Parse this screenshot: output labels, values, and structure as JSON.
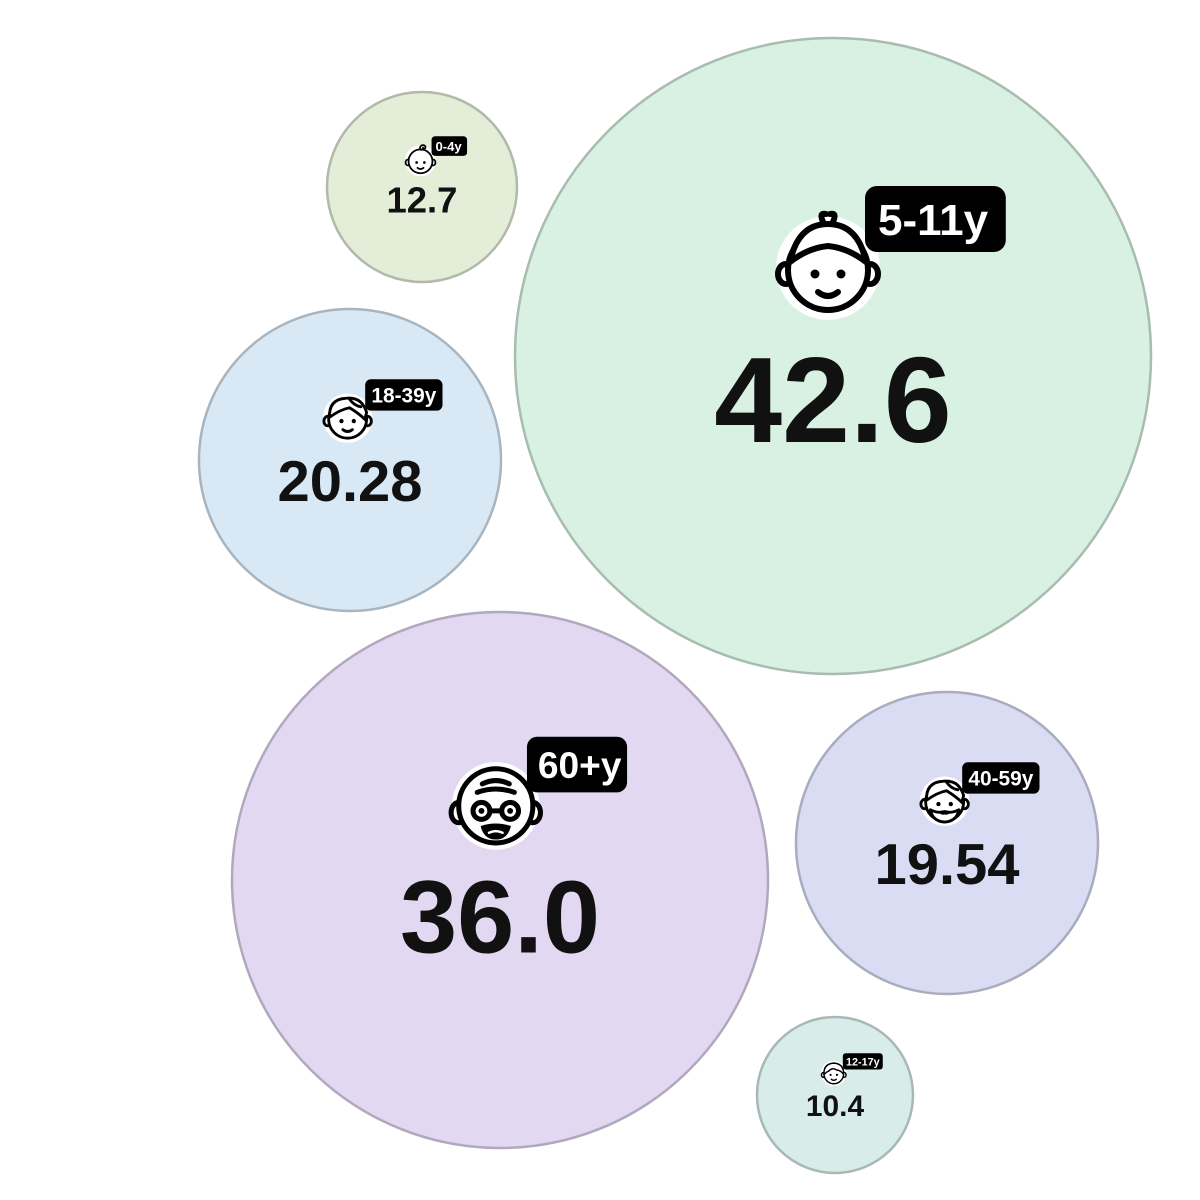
{
  "chart_data": {
    "type": "bubble",
    "title": "",
    "legend": "none",
    "grid": false,
    "categories": [
      "0-4y",
      "5-11y",
      "12-17y",
      "18-39y",
      "40-59y",
      "60+y"
    ],
    "series": [
      {
        "points": [
          {
            "label": "0-4y",
            "value_text": "12.7",
            "value": 12.7,
            "color": "#e3edd8",
            "icon": "baby-face-icon"
          },
          {
            "label": "5-11y",
            "value_text": "42.6",
            "value": 42.6,
            "color": "#d8f1e2",
            "icon": "child-face-icon"
          },
          {
            "label": "18-39y",
            "value_text": "20.28",
            "value": 20.28,
            "color": "#d8e8f5",
            "icon": "young-adult-face-icon"
          },
          {
            "label": "60+y",
            "value_text": "36.0",
            "value": 36.0,
            "color": "#e3d8f2",
            "icon": "elderly-face-icon"
          },
          {
            "label": "40-59y",
            "value_text": "19.54",
            "value": 19.54,
            "color": "#d9dcf2",
            "icon": "bearded-adult-face-icon"
          },
          {
            "label": "12-17y",
            "value_text": "10.4",
            "value": 10.4,
            "color": "#d8ece9",
            "icon": "teen-face-icon"
          }
        ]
      }
    ]
  }
}
